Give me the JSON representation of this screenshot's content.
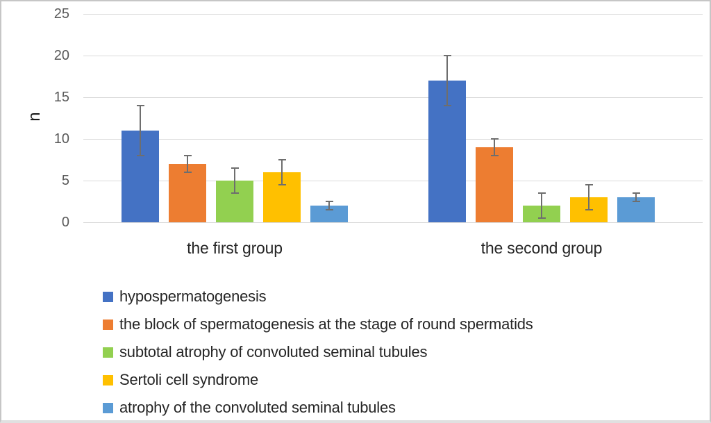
{
  "figure": {
    "background": "#ffffff",
    "border_color": "#c6c6c6"
  },
  "chart_data": {
    "type": "bar",
    "title": "",
    "xlabel": "",
    "ylabel": "n",
    "ylim": [
      0,
      25
    ],
    "yticks": [
      0,
      5,
      10,
      15,
      20,
      25
    ],
    "grid": "horizontal gridlines on",
    "legend_position": "bottom-left",
    "categories": [
      "the first group",
      "the second group"
    ],
    "series": [
      {
        "name": "hypospermatogenesis",
        "color": "#4472c4",
        "values": [
          11,
          17
        ],
        "errors": [
          3,
          3
        ]
      },
      {
        "name": "the block of spermatogenesis at the stage of round spermatids",
        "color": "#ed7d31",
        "values": [
          7,
          9
        ],
        "errors": [
          1,
          1
        ]
      },
      {
        "name": "subtotal atrophy of convoluted seminal tubules",
        "color": "#92d050",
        "values": [
          5,
          2
        ],
        "errors": [
          1.5,
          1.5
        ]
      },
      {
        "name": "Sertoli cell syndrome",
        "color": "#ffc000",
        "values": [
          6,
          3
        ],
        "errors": [
          1.5,
          1.5
        ]
      },
      {
        "name": "atrophy of the convoluted seminal tubules",
        "color": "#5b9bd5",
        "values": [
          2,
          3
        ],
        "errors": [
          0.5,
          0.5
        ]
      }
    ],
    "colors": {
      "gridline": "#d9d9d9",
      "error_bar": "#6e6e6e",
      "tick_label": "#595959",
      "category_label": "#262626",
      "legend_text": "#262626"
    }
  }
}
